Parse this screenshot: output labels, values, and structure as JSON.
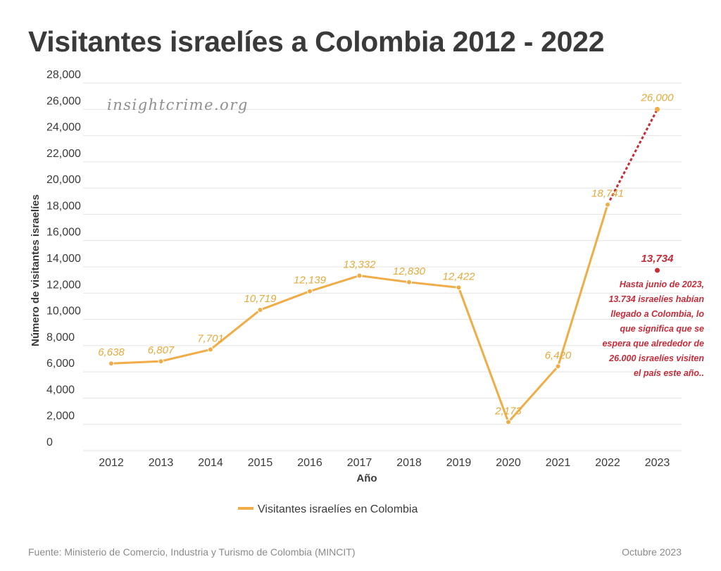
{
  "title": "Visitantes israelíes a Colombia 2012 - 2022",
  "watermark": "insightcrime.org",
  "source": "Fuente: Ministerio de Comercio, Industria y Turismo de Colombia (MINCIT)",
  "date": "Octubre 2023",
  "colors": {
    "line": "#f0ac46",
    "label": "#e6a93a",
    "projection": "#c62b38",
    "grid": "#e3e3e3",
    "text": "#3a3a3a"
  },
  "chart_data": {
    "type": "line",
    "xlabel": "Año",
    "ylabel": "Número de visitantes israelíes",
    "ylim": [
      0,
      28000
    ],
    "yticks": [
      0,
      2000,
      4000,
      6000,
      8000,
      10000,
      12000,
      14000,
      16000,
      18000,
      20000,
      22000,
      24000,
      26000,
      28000
    ],
    "ytick_labels": [
      "0",
      "2,000",
      "4,000",
      "6,000",
      "8,000",
      "10,000",
      "12,000",
      "14,000",
      "16,000",
      "18,000",
      "20,000",
      "22,000",
      "24,000",
      "26,000",
      "28,000"
    ],
    "categories": [
      "2012",
      "2013",
      "2014",
      "2015",
      "2016",
      "2017",
      "2018",
      "2019",
      "2020",
      "2021",
      "2022",
      "2023"
    ],
    "grid": true,
    "legend_position": "bottom",
    "series": [
      {
        "name": "Visitantes israelíes en Colombia",
        "x": [
          "2012",
          "2013",
          "2014",
          "2015",
          "2016",
          "2017",
          "2018",
          "2019",
          "2020",
          "2021",
          "2022"
        ],
        "values": [
          6638,
          6807,
          7701,
          10719,
          12139,
          13332,
          12830,
          12422,
          2173,
          6420,
          18741
        ],
        "labels": [
          "6,638",
          "6,807",
          "7,701",
          "10,719",
          "12,139",
          "13,332",
          "12,830",
          "12,422",
          "2,173",
          "6,420",
          "18,741"
        ]
      }
    ],
    "projection": {
      "from": {
        "x": "2022",
        "value": 18741
      },
      "to": {
        "x": "2023",
        "value": 26000,
        "label": "26,000"
      }
    },
    "partial_2023": {
      "x": "2023",
      "value": 13734,
      "label": "13,734",
      "note": [
        "Hasta junio de 2023,",
        "13.734 israelíes habían",
        "llegado a Colombia, lo",
        "que significa que se",
        "espera que alrededor de",
        "26.000 israelíes visiten",
        "el país este año.."
      ]
    }
  }
}
